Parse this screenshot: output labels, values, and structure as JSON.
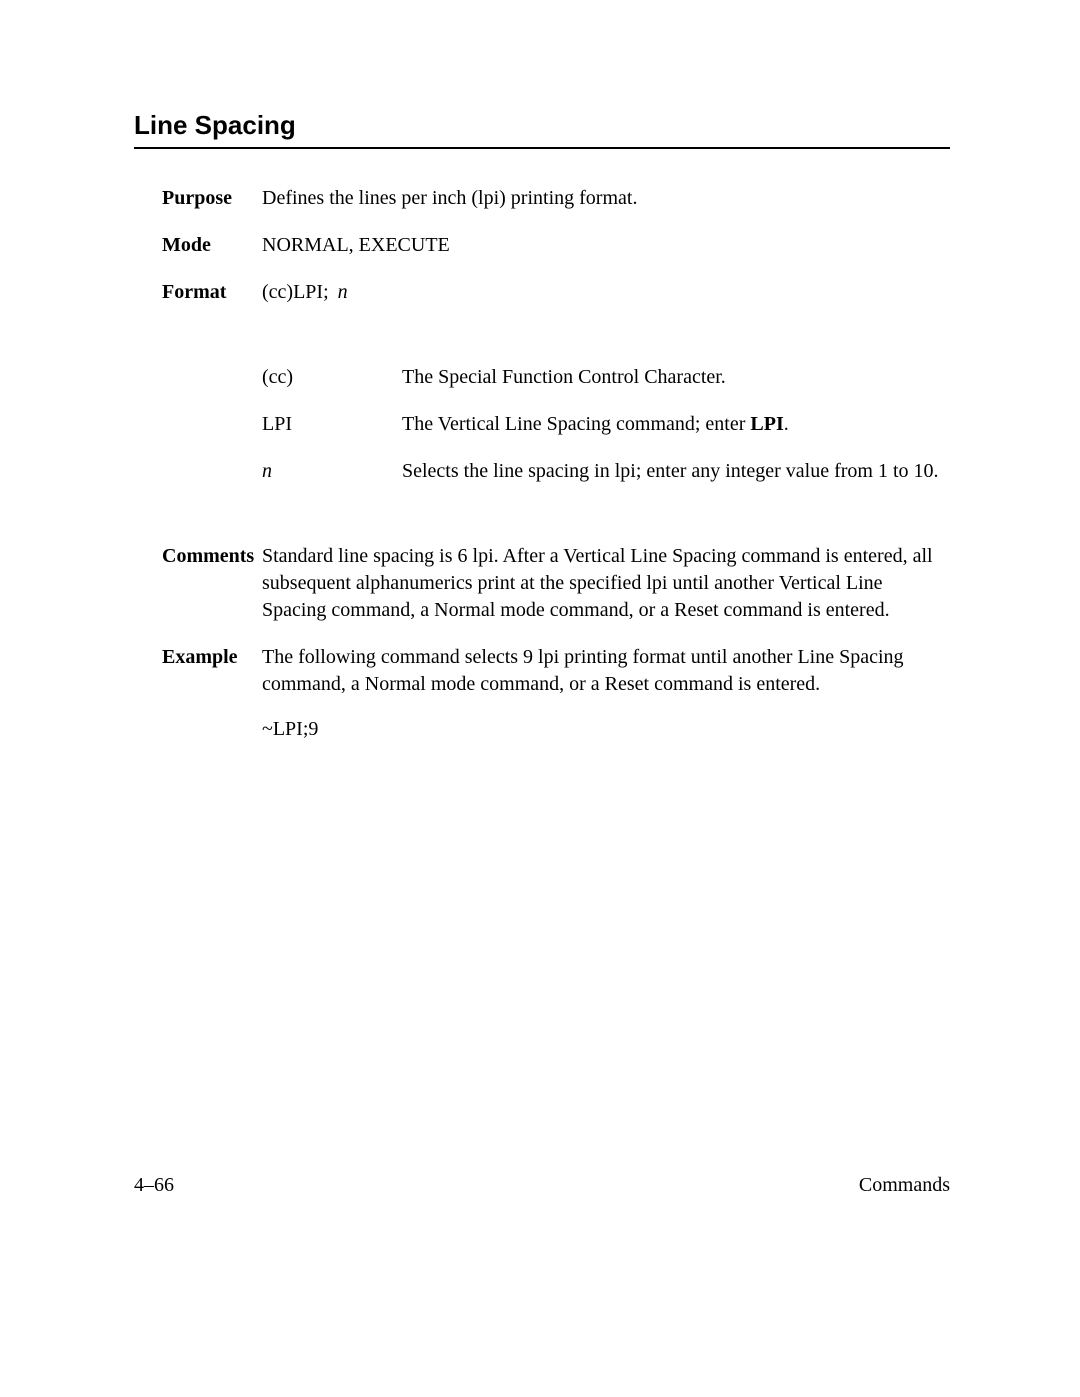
{
  "title": "Line Spacing",
  "rows": {
    "purpose": {
      "label": "Purpose",
      "value": "Defines the lines per inch (lpi) printing format."
    },
    "mode": {
      "label": "Mode",
      "value": "NORMAL, EXECUTE"
    },
    "format": {
      "label": "Format",
      "prefix": "(cc)LPI;  ",
      "n": "n"
    }
  },
  "params": {
    "cc": {
      "label": "(cc)",
      "desc": "The Special Function Control Character."
    },
    "lpi": {
      "label": "LPI",
      "desc_pre": "The Vertical Line Spacing command; enter ",
      "desc_bold": "LPI",
      "desc_post": "."
    },
    "n": {
      "label": "n",
      "desc": "Selects the line spacing in lpi; enter any integer value from 1 to 10."
    }
  },
  "comments": {
    "label": "Comments",
    "text": "Standard line spacing is 6 lpi. After a Vertical Line Spacing command is entered, all subsequent alphanumerics print at the specified lpi until another Vertical Line Spacing command, a Normal mode command, or a Reset command is entered."
  },
  "example": {
    "label": "Example",
    "text": "The following command selects 9 lpi printing format until another Line Spacing command, a Normal mode command, or a Reset command is entered.",
    "code": "~LPI;9"
  },
  "footer": {
    "left": "4–66",
    "right": "Commands"
  }
}
